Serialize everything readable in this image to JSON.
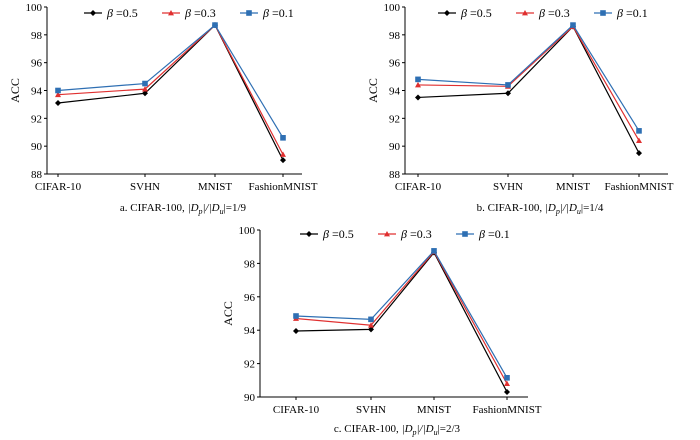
{
  "chart_data": [
    {
      "type": "line",
      "categories": [
        "CIFAR-10",
        "SVHN",
        "MNIST",
        "FashionMNIST"
      ],
      "ylabel": "ACC",
      "ylim": [
        88,
        100
      ],
      "yticks": [
        88,
        90,
        92,
        94,
        96,
        98,
        100
      ],
      "caption": {
        "prefix": "a.  CIFAR-100, ",
        "p": "|D",
        "p_sub": "p",
        "mid": "|/|D",
        "u_sub": "u",
        "suffix": "|=1/9"
      },
      "series": [
        {
          "name": "β=0.5",
          "greek": "β",
          "rest": "=0.5",
          "color": "#000000",
          "marker": "diamond",
          "values": [
            93.1,
            93.8,
            98.7,
            89.0
          ]
        },
        {
          "name": "β=0.3",
          "greek": "β",
          "rest": "=0.3",
          "color": "#e03030",
          "marker": "triangle",
          "values": [
            93.7,
            94.1,
            98.7,
            89.4
          ]
        },
        {
          "name": "β=0.1",
          "greek": "β",
          "rest": "=0.1",
          "color": "#2e6fb3",
          "marker": "square",
          "values": [
            94.0,
            94.5,
            98.7,
            90.6
          ]
        }
      ]
    },
    {
      "type": "line",
      "categories": [
        "CIFAR-10",
        "SVHN",
        "MNIST",
        "FashionMNIST"
      ],
      "ylabel": "ACC",
      "ylim": [
        88,
        100
      ],
      "yticks": [
        88,
        90,
        92,
        94,
        96,
        98,
        100
      ],
      "caption": {
        "prefix": "b.  CIFAR-100, ",
        "p": "|D",
        "p_sub": "p",
        "mid": "|/|D",
        "u_sub": "u",
        "suffix": "|=1/4"
      },
      "series": [
        {
          "name": "β=0.5",
          "greek": "β",
          "rest": "=0.5",
          "color": "#000000",
          "marker": "diamond",
          "values": [
            93.5,
            93.8,
            98.6,
            89.5
          ]
        },
        {
          "name": "β=0.3",
          "greek": "β",
          "rest": "=0.3",
          "color": "#e03030",
          "marker": "triangle",
          "values": [
            94.4,
            94.3,
            98.6,
            90.4
          ]
        },
        {
          "name": "β=0.1",
          "greek": "β",
          "rest": "=0.1",
          "color": "#2e6fb3",
          "marker": "square",
          "values": [
            94.8,
            94.4,
            98.7,
            91.1
          ]
        }
      ]
    },
    {
      "type": "line",
      "categories": [
        "CIFAR-10",
        "SVHN",
        "MNIST",
        "FashionMNIST"
      ],
      "ylabel": "ACC",
      "ylim": [
        90,
        100
      ],
      "yticks": [
        90,
        92,
        94,
        96,
        98,
        100
      ],
      "caption": {
        "prefix": "c.  CIFAR-100, ",
        "p": "|D",
        "p_sub": "p",
        "mid": "|/|D",
        "u_sub": "u",
        "suffix": "|=2/3"
      },
      "series": [
        {
          "name": "β=0.5",
          "greek": "β",
          "rest": "=0.5",
          "color": "#000000",
          "marker": "diamond",
          "values": [
            93.95,
            94.05,
            98.65,
            90.3
          ]
        },
        {
          "name": "β=0.3",
          "greek": "β",
          "rest": "=0.3",
          "color": "#e03030",
          "marker": "triangle",
          "values": [
            94.7,
            94.3,
            98.7,
            90.8
          ]
        },
        {
          "name": "β=0.1",
          "greek": "β",
          "rest": "=0.1",
          "color": "#2e6fb3",
          "marker": "square",
          "values": [
            94.85,
            94.65,
            98.75,
            91.15
          ]
        }
      ]
    }
  ]
}
